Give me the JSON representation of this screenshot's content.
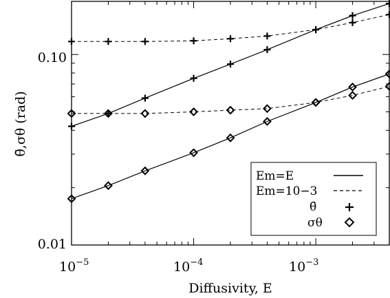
{
  "chart_data": {
    "type": "line",
    "xscale": "log",
    "yscale": "log",
    "xlim": [
      1e-05,
      0.004
    ],
    "ylim": [
      0.01,
      0.19
    ],
    "xlabel": "Diffusivity, E",
    "ylabel": "θ̄,σθ (rad)",
    "x_ticks": [
      {
        "value": 1e-05,
        "base": "10",
        "exp": "−5"
      },
      {
        "value": 0.0001,
        "base": "10",
        "exp": "−4"
      },
      {
        "value": 0.001,
        "base": "10",
        "exp": "−3"
      }
    ],
    "y_ticks": [
      {
        "value": 0.01,
        "label": "0.01"
      },
      {
        "value": 0.1,
        "label": "0.10"
      }
    ],
    "grid": false,
    "legend_position": "bottom-right",
    "legend": [
      {
        "label": "Em=E",
        "style": "solid"
      },
      {
        "label": "Em=10−3",
        "style": "dashed"
      },
      {
        "label": "θ̄",
        "marker": "plus"
      },
      {
        "label": "σθ",
        "marker": "diamond"
      }
    ],
    "series": [
      {
        "legend_ref": "Em=E / θ̄",
        "style": "solid",
        "marker": "plus",
        "x": [
          1e-05,
          2e-05,
          4e-05,
          0.0001,
          0.0002,
          0.0004,
          0.001,
          0.002,
          0.004
        ],
        "y": [
          0.042,
          0.049,
          0.059,
          0.075,
          0.089,
          0.106,
          0.135,
          0.16,
          0.185
        ]
      },
      {
        "legend_ref": "Em=10−3 / θ̄",
        "style": "dashed",
        "marker": "plus",
        "x": [
          1e-05,
          2e-05,
          4e-05,
          0.0001,
          0.0002,
          0.0004,
          0.001,
          0.002,
          0.004
        ],
        "y": [
          0.117,
          0.117,
          0.117,
          0.118,
          0.121,
          0.125,
          0.135,
          0.147,
          0.162
        ]
      },
      {
        "legend_ref": "Em=E / σθ",
        "style": "solid",
        "marker": "diamond",
        "x": [
          1e-05,
          2e-05,
          4e-05,
          0.0001,
          0.0002,
          0.0004,
          0.001,
          0.002,
          0.004
        ],
        "y": [
          0.0175,
          0.0205,
          0.0245,
          0.0305,
          0.0365,
          0.0445,
          0.056,
          0.0675,
          0.079
        ]
      },
      {
        "legend_ref": "Em=10−3 / σθ",
        "style": "dashed",
        "marker": "diamond",
        "x": [
          1e-05,
          2e-05,
          4e-05,
          0.0001,
          0.0002,
          0.0004,
          0.001,
          0.002,
          0.004
        ],
        "y": [
          0.049,
          0.049,
          0.049,
          0.05,
          0.051,
          0.052,
          0.056,
          0.061,
          0.068
        ]
      }
    ]
  }
}
